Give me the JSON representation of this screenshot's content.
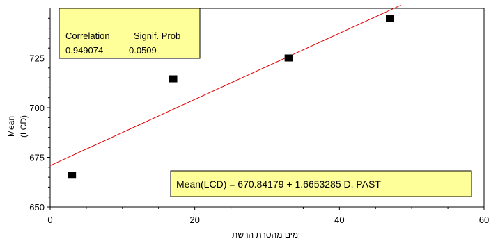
{
  "chart_data": {
    "type": "scatter",
    "title": "",
    "xlabel": "ימים מהסרת הרשת",
    "ylabel_lines": [
      "Mean",
      "(LCD)"
    ],
    "xlim": [
      0,
      60
    ],
    "ylim": [
      650,
      750
    ],
    "xticks": [
      0,
      20,
      40,
      60
    ],
    "yticks": [
      650,
      675,
      700,
      725
    ],
    "points": [
      {
        "x": 3,
        "y": 666
      },
      {
        "x": 17,
        "y": 714.5
      },
      {
        "x": 33,
        "y": 725
      },
      {
        "x": 47,
        "y": 745
      }
    ],
    "fit": {
      "intercept": 670.84179,
      "slope": 1.6653285,
      "x_range": [
        0,
        48.5
      ]
    },
    "colors": {
      "fit_line": "#e00000",
      "points": "#000000",
      "box_fill": "#ffff99"
    },
    "correlation_box": {
      "header_correlation": "Correlation",
      "header_signif": "Signif. Prob",
      "correlation_value": "0.949074",
      "signif_value": "0.0509"
    },
    "equation": "Mean(LCD) = 670.84179 + 1.6653285 D. PAST"
  }
}
